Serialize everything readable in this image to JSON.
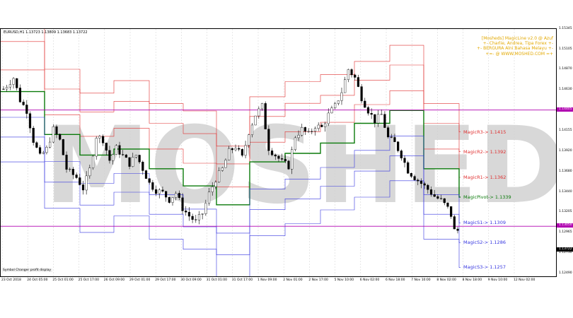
{
  "chart": {
    "symbol_line": "EURUSD,H1  1.13723 1.13809 1.13683 1.13722",
    "credits": [
      "[Mosheds] MagicLine v2.0 @ Azuf",
      "+- Charlie, Andrea, Tipa Forex +-",
      "+- BERGURA Alni Bahasa Melayu +-",
      "+=- @ WWW.MOSHED.COM =+"
    ],
    "status_text": "Symbol Changer profit display",
    "watermark": "MOSHED",
    "current_price_tag": "1.13722",
    "purple_price_tags": [
      "1.14405",
      "1.13050"
    ],
    "colors": {
      "candle": "#000000",
      "resistance": "#e03030",
      "support": "#3535e0",
      "pivot": "#0a7a0a",
      "purple": "#b000b0",
      "watermark": "#d8d8d8",
      "credits": "#e2a800"
    }
  },
  "chart_data": {
    "type": "candlestick",
    "symbol": "EURUSD",
    "timeframe": "H1",
    "ylim": [
      1.1245,
      1.1535
    ],
    "price_ticks": [
      "1.15345",
      "1.15105",
      "1.14870",
      "1.14630",
      "1.14395",
      "1.14155",
      "1.13920",
      "1.13680",
      "1.13440",
      "1.13205",
      "1.12965",
      "1.12730",
      "1.12490"
    ],
    "time_ticks": [
      "23 Oct 2018",
      "24 Oct 05:00",
      "25 Oct 01:00",
      "25 Oct 17:00",
      "26 Oct 09:00",
      "29 Oct 01:00",
      "29 Oct 17:00",
      "30 Oct 09:00",
      "31 Oct 01:00",
      "31 Oct 17:00",
      "1 Nov 09:00",
      "2 Nov 01:00",
      "2 Nov 17:00",
      "5 Nov 10:00",
      "6 Nov 02:00",
      "6 Nov 18:00",
      "7 Nov 10:00",
      "8 Nov 02:00",
      "8 Nov 18:00",
      "9 Nov 10:00",
      "12 Nov 02:00"
    ],
    "levels": [
      {
        "label": "MagicR3-> 1.1415",
        "value": 1.1415,
        "role": "resistance"
      },
      {
        "label": "MagicR2-> 1.1392",
        "value": 1.1392,
        "role": "resistance"
      },
      {
        "label": "MagicR1-> 1.1362",
        "value": 1.1362,
        "role": "resistance"
      },
      {
        "label": "MagicPivot-> 1.1339",
        "value": 1.1339,
        "role": "pivot"
      },
      {
        "label": "MagicS1-> 1.1309",
        "value": 1.1309,
        "role": "support"
      },
      {
        "label": "MagicS2-> 1.1286",
        "value": 1.1286,
        "role": "support"
      },
      {
        "label": "MagicS3-> 1.1257",
        "value": 1.1257,
        "role": "support"
      }
    ],
    "horizontal_lines": [
      1.14405,
      1.1305
    ],
    "current_price": 1.13722,
    "price_path": [
      [
        0,
        1.1465
      ],
      [
        3,
        1.1478
      ],
      [
        5,
        1.1452
      ],
      [
        7,
        1.144
      ],
      [
        9,
        1.1405
      ],
      [
        11,
        1.1386
      ],
      [
        13,
        1.1395
      ],
      [
        15,
        1.1418
      ],
      [
        17,
        1.1405
      ],
      [
        19,
        1.1372
      ],
      [
        20,
        1.1368
      ],
      [
        22,
        1.1362
      ],
      [
        24,
        1.1349
      ],
      [
        26,
        1.1371
      ],
      [
        28,
        1.141
      ],
      [
        30,
        1.1406
      ],
      [
        32,
        1.1382
      ],
      [
        34,
        1.1396
      ],
      [
        36,
        1.1387
      ],
      [
        38,
        1.1378
      ],
      [
        40,
        1.1388
      ],
      [
        42,
        1.1372
      ],
      [
        44,
        1.1355
      ],
      [
        46,
        1.1347
      ],
      [
        48,
        1.1344
      ],
      [
        50,
        1.1336
      ],
      [
        52,
        1.1344
      ],
      [
        54,
        1.1326
      ],
      [
        56,
        1.1317
      ],
      [
        58,
        1.131
      ],
      [
        60,
        1.132
      ],
      [
        62,
        1.1343
      ],
      [
        64,
        1.136
      ],
      [
        66,
        1.1372
      ],
      [
        68,
        1.1392
      ],
      [
        70,
        1.1398
      ],
      [
        72,
        1.1385
      ],
      [
        74,
        1.1415
      ],
      [
        76,
        1.1435
      ],
      [
        78,
        1.1445
      ],
      [
        80,
        1.1396
      ],
      [
        82,
        1.1388
      ],
      [
        84,
        1.138
      ],
      [
        86,
        1.1375
      ],
      [
        88,
        1.141
      ],
      [
        90,
        1.1418
      ],
      [
        92,
        1.1412
      ],
      [
        94,
        1.1422
      ],
      [
        96,
        1.142
      ],
      [
        98,
        1.1435
      ],
      [
        100,
        1.1445
      ],
      [
        102,
        1.1462
      ],
      [
        104,
        1.1488
      ],
      [
        106,
        1.1478
      ],
      [
        108,
        1.1455
      ],
      [
        110,
        1.144
      ],
      [
        112,
        1.1428
      ],
      [
        114,
        1.1435
      ],
      [
        116,
        1.1408
      ],
      [
        118,
        1.1402
      ],
      [
        120,
        1.1388
      ],
      [
        122,
        1.137
      ],
      [
        124,
        1.1362
      ],
      [
        126,
        1.1355
      ],
      [
        128,
        1.1348
      ],
      [
        130,
        1.134
      ],
      [
        132,
        1.1335
      ],
      [
        134,
        1.1326
      ],
      [
        135,
        1.1318
      ],
      [
        136,
        1.13
      ]
    ]
  }
}
